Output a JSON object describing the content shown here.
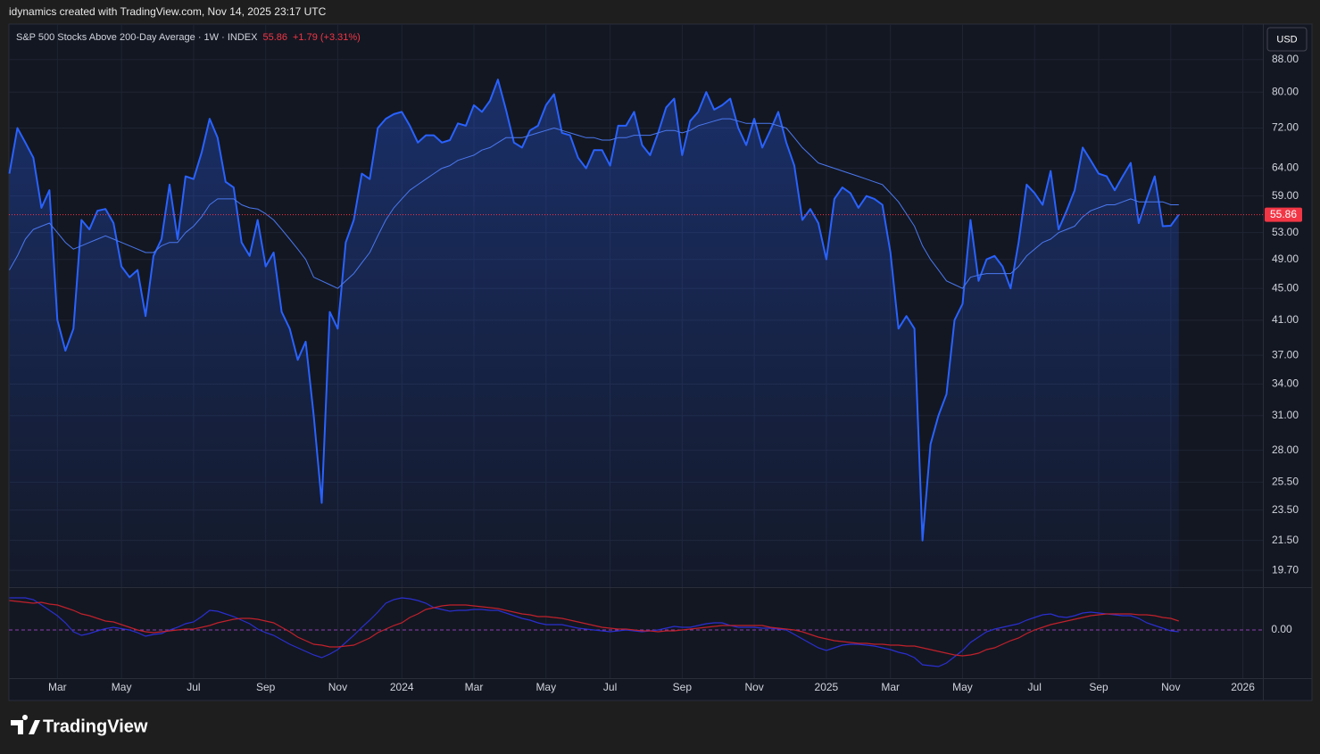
{
  "header": "idynamics created with TradingView.com, Nov 14, 2025 23:17 UTC",
  "branding": "TradingView",
  "currency_button": "USD",
  "chart_data": {
    "type": "area",
    "last_text": "55.86",
    "change_text": "+1.79 (+3.31%)",
    "last_price_label": "55.86",
    "yscale": "log",
    "grid": true,
    "ylim": [
      18.75,
      97.4
    ],
    "yticks": [
      {
        "value": 19.7,
        "label": "19.70"
      },
      {
        "value": 21.5,
        "label": "21.50"
      },
      {
        "value": 23.5,
        "label": "23.50"
      },
      {
        "value": 25.5,
        "label": "25.50"
      },
      {
        "value": 28,
        "label": "28.00"
      },
      {
        "value": 31,
        "label": "31.00"
      },
      {
        "value": 34,
        "label": "34.00"
      },
      {
        "value": 37,
        "label": "37.00"
      },
      {
        "value": 41,
        "label": "41.00"
      },
      {
        "value": 45,
        "label": "45.00"
      },
      {
        "value": 49,
        "label": "49.00"
      },
      {
        "value": 53,
        "label": "53.00"
      },
      {
        "value": 59,
        "label": "59.00"
      },
      {
        "value": 64,
        "label": "64.00"
      },
      {
        "value": 72,
        "label": "72.00"
      },
      {
        "value": 80,
        "label": "80.00"
      },
      {
        "value": 88,
        "label": "88.00"
      }
    ],
    "categories": [
      null,
      null,
      null,
      null,
      null,
      null,
      "Mar",
      null,
      null,
      null,
      null,
      null,
      null,
      null,
      "May",
      null,
      null,
      null,
      null,
      null,
      null,
      null,
      null,
      "Jul",
      null,
      null,
      null,
      null,
      null,
      null,
      null,
      null,
      "Sep",
      null,
      null,
      null,
      null,
      null,
      null,
      null,
      null,
      "Nov",
      null,
      null,
      null,
      null,
      null,
      null,
      null,
      "2024",
      null,
      null,
      null,
      null,
      null,
      null,
      null,
      null,
      "Mar",
      null,
      null,
      null,
      null,
      null,
      null,
      null,
      null,
      "May",
      null,
      null,
      null,
      null,
      null,
      null,
      null,
      "Jul",
      null,
      null,
      null,
      null,
      null,
      null,
      null,
      null,
      "Sep",
      null,
      null,
      null,
      null,
      null,
      null,
      null,
      null,
      "Nov",
      null,
      null,
      null,
      null,
      null,
      null,
      null,
      null,
      "2025",
      null,
      null,
      null,
      null,
      null,
      null,
      null,
      "Mar",
      null,
      null,
      null,
      null,
      null,
      null,
      null,
      null,
      "May",
      null,
      null,
      null,
      null,
      null,
      null,
      null,
      null,
      "Jul",
      null,
      null,
      null,
      null,
      null,
      null,
      null,
      "Sep",
      null,
      null,
      null,
      null,
      null,
      null,
      null,
      null,
      "Nov",
      null,
      null,
      null,
      null,
      null,
      null,
      null,
      null,
      "2026",
      null,
      null
    ],
    "series": [
      {
        "name": "S&P 500 Stocks Above 200-Day Average · 1W · INDEX",
        "color": "#2962ff",
        "fill": true,
        "values": [
          63,
          72,
          69,
          66,
          57,
          60,
          41,
          37.5,
          40,
          55,
          53.5,
          56.5,
          56.8,
          54.5,
          48,
          46.5,
          47.5,
          41.5,
          49.5,
          52,
          61,
          52,
          62.5,
          62,
          67,
          74,
          70,
          61.5,
          60.5,
          51.5,
          49.5,
          55,
          48,
          50,
          42,
          40,
          36.5,
          38.5,
          31,
          24,
          42,
          40,
          51.5,
          55,
          63,
          62,
          72,
          74,
          75,
          75.5,
          72.5,
          69,
          70.5,
          70.5,
          69,
          69.5,
          73,
          72.5,
          77,
          75.5,
          78,
          83,
          76,
          69,
          68,
          71.5,
          72.5,
          77,
          79.5,
          71,
          70.5,
          66,
          64,
          67.5,
          67.5,
          64.5,
          72.5,
          72.5,
          75.5,
          68.5,
          66.5,
          71,
          76.5,
          78.5,
          66.5,
          73.5,
          75.5,
          80,
          76,
          77,
          78.5,
          72,
          68.5,
          74,
          68,
          71.5,
          75.5,
          69,
          64.5,
          55,
          56.8,
          54.5,
          49,
          58.5,
          60.5,
          59.5,
          57,
          59,
          58.5,
          57.5,
          50,
          40,
          41.5,
          40,
          21.5,
          28.5,
          31,
          33,
          41,
          43,
          55,
          46,
          49,
          49.5,
          48,
          45,
          51.5,
          61,
          59.5,
          57.5,
          63.5,
          53.5,
          56.5,
          60,
          68,
          65.5,
          63,
          62.5,
          60,
          62.5,
          65,
          54.5,
          58.5,
          62.5,
          54,
          54.07,
          55.86,
          null,
          null,
          null,
          null,
          null,
          null,
          null,
          null,
          null,
          null
        ]
      },
      {
        "color": "#4a78f0",
        "fill": false,
        "values": [
          47.5,
          49.5,
          52,
          53.5,
          54,
          54.5,
          53,
          51.5,
          50.5,
          51,
          51.5,
          52,
          52.5,
          52,
          51.5,
          51,
          50.5,
          50,
          50,
          51,
          51.5,
          51.5,
          53,
          54,
          55.5,
          57.5,
          58.5,
          58.5,
          58.5,
          57.5,
          57,
          56.8,
          56,
          55,
          53.5,
          52,
          50.5,
          49,
          46.5,
          46,
          45.5,
          45,
          46,
          47,
          48.5,
          50,
          52.5,
          55,
          57,
          58.5,
          60,
          61,
          62,
          63,
          64,
          64.5,
          65.5,
          66,
          66.5,
          67.5,
          68,
          69,
          70,
          70,
          70,
          70.5,
          71,
          71.5,
          72,
          71.5,
          71,
          70.5,
          70,
          70,
          69.5,
          69.5,
          70,
          70,
          70.5,
          70.5,
          70.5,
          71,
          71.5,
          71.5,
          71,
          71.5,
          72.5,
          73,
          73.5,
          74,
          74,
          73.5,
          73,
          73,
          73,
          73,
          72.5,
          72,
          70,
          68,
          66.5,
          65,
          64.5,
          64,
          63.5,
          63,
          62.5,
          62,
          61.5,
          61,
          59.5,
          58,
          56,
          54,
          51,
          49,
          47.5,
          46,
          45.5,
          45,
          46.5,
          46.8,
          47,
          47,
          47,
          47,
          48,
          49.5,
          50.5,
          51.5,
          52,
          53,
          53.5,
          54,
          55.5,
          56.5,
          57,
          57.5,
          57.5,
          58,
          58.5,
          58,
          58,
          58,
          58,
          57.5,
          57.5,
          null,
          null,
          null,
          null,
          null,
          null,
          null,
          null,
          null,
          null
        ]
      }
    ],
    "lower_panel": {
      "type": "line",
      "ylim": [
        -10.8,
        9.2
      ],
      "yticks": [
        {
          "value": 0,
          "label": "0.00"
        }
      ],
      "series": [
        {
          "color": "#2a2fd0",
          "values": [
            7.2,
            7.2,
            7.2,
            6.8,
            5.6,
            4.4,
            3.2,
            1.6,
            -0.4,
            -1.2,
            -0.8,
            -0.2,
            0.3,
            0.6,
            0.3,
            0,
            -0.6,
            -1.4,
            -1,
            -0.8,
            0,
            0.6,
            1.4,
            1.8,
            3,
            4.4,
            4.2,
            3.6,
            3,
            2.2,
            1.4,
            0.2,
            -0.6,
            -1.2,
            -2.2,
            -3.2,
            -4,
            -4.8,
            -5.6,
            -6.2,
            -5.4,
            -4.4,
            -2.8,
            -1.2,
            0.6,
            2.2,
            4,
            6,
            6.8,
            7.2,
            7,
            6.6,
            6,
            5,
            4.6,
            4.2,
            4.4,
            4.4,
            4.6,
            4.6,
            4.4,
            4.4,
            3.8,
            3.2,
            2.6,
            2.2,
            1.6,
            1.2,
            1.2,
            1.2,
            0.8,
            0.4,
            0.2,
            0,
            -0.2,
            -0.4,
            -0.2,
            0,
            -0.2,
            -0.4,
            -0.2,
            0,
            0.4,
            0.8,
            0.6,
            0.6,
            1,
            1.4,
            1.6,
            1.6,
            1,
            0.6,
            0.6,
            0.6,
            0.4,
            0.4,
            0.2,
            0,
            -1,
            -2,
            -3,
            -4,
            -4.6,
            -4,
            -3.4,
            -3.2,
            -3.2,
            -3.4,
            -3.6,
            -4,
            -4.4,
            -5,
            -5.4,
            -6.2,
            -7.8,
            -8,
            -8.2,
            -7.4,
            -6,
            -4.6,
            -2.8,
            -1.6,
            -0.4,
            0.2,
            0.6,
            1,
            1.4,
            2.2,
            2.8,
            3.4,
            3.6,
            3,
            2.8,
            3.2,
            3.8,
            4,
            3.8,
            3.6,
            3.4,
            3.2,
            3.2,
            2.6,
            1.6,
            1,
            0.4,
            -0.2,
            -0.4,
            null,
            null,
            null,
            null,
            null,
            null,
            null,
            null,
            null,
            null
          ]
        },
        {
          "color": "#c0212b",
          "values": [
            6.6,
            6.4,
            6.2,
            6,
            6.2,
            5.8,
            5.6,
            5,
            4.4,
            3.6,
            3.2,
            2.6,
            2,
            1.8,
            1.2,
            0.6,
            0,
            -0.4,
            -0.6,
            -0.4,
            -0.2,
            0,
            0.2,
            0.2,
            0.6,
            1,
            1.6,
            2,
            2.4,
            2.6,
            2.6,
            2.4,
            2,
            1.6,
            0.6,
            -0.4,
            -1.6,
            -2.4,
            -3.2,
            -3.4,
            -3.8,
            -3.8,
            -3.6,
            -3.4,
            -2.6,
            -1.8,
            -0.6,
            0.2,
            1,
            1.6,
            2.8,
            3.6,
            4.6,
            5,
            5.4,
            5.6,
            5.6,
            5.6,
            5.4,
            5.2,
            5,
            4.8,
            4.4,
            4,
            3.6,
            3.4,
            3,
            3,
            2.8,
            2.6,
            2.2,
            1.8,
            1.4,
            1,
            0.6,
            0.4,
            0.2,
            0.2,
            0,
            -0.2,
            -0.2,
            -0.4,
            -0.2,
            -0.2,
            0,
            0.2,
            0.4,
            0.6,
            0.8,
            1,
            1,
            1,
            1,
            1,
            1,
            0.6,
            0.4,
            0.2,
            0,
            -0.4,
            -1,
            -1.6,
            -2,
            -2.4,
            -2.6,
            -2.8,
            -3,
            -3,
            -3.2,
            -3.2,
            -3.4,
            -3.4,
            -3.6,
            -3.6,
            -4,
            -4.4,
            -4.8,
            -5.2,
            -5.6,
            -5.8,
            -5.6,
            -5.2,
            -4.4,
            -4,
            -3.2,
            -2.4,
            -1.8,
            -0.8,
            0,
            0.6,
            1.2,
            1.6,
            2,
            2.4,
            2.8,
            3.2,
            3.4,
            3.6,
            3.6,
            3.6,
            3.6,
            3.4,
            3.4,
            3.2,
            2.8,
            2.6,
            2,
            null,
            null,
            null,
            null,
            null,
            null,
            null,
            null,
            null,
            null
          ]
        }
      ]
    }
  }
}
